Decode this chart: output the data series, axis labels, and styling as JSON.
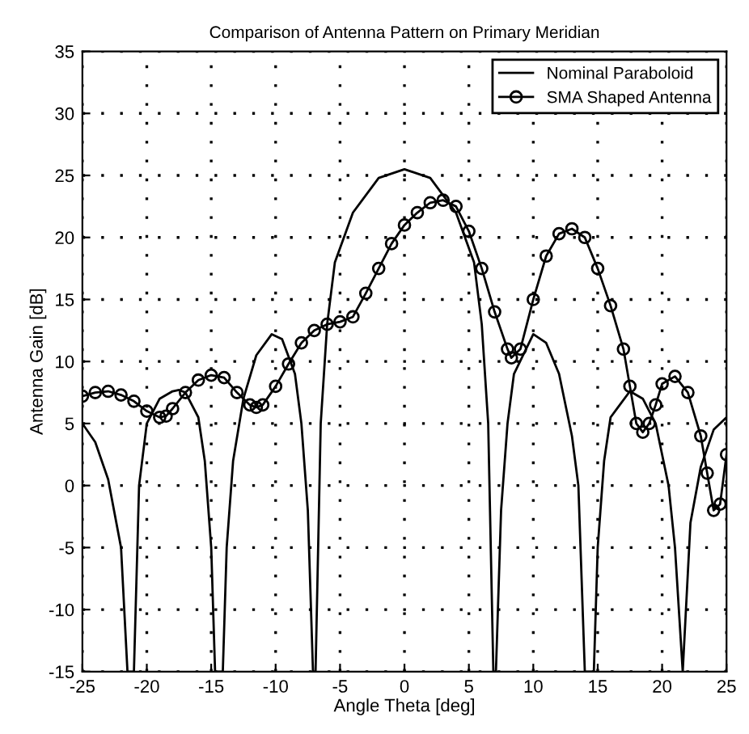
{
  "chart_data": {
    "type": "line",
    "title": "Comparison of Antenna Pattern on Primary Meridian",
    "xlabel": "Angle Theta [deg]",
    "ylabel": "Antenna Gain [dB]",
    "xlim": [
      -25,
      25
    ],
    "ylim": [
      -15,
      35
    ],
    "xticks": [
      -25,
      -20,
      -15,
      -10,
      -5,
      0,
      5,
      10,
      15,
      20,
      25
    ],
    "yticks": [
      -15,
      -10,
      -5,
      0,
      5,
      10,
      15,
      20,
      25,
      30,
      35
    ],
    "grid": true,
    "legend": "top right",
    "series": [
      {
        "name": "Nominal Paraboloid",
        "color": "#000000",
        "marker": "none",
        "x": [
          -25,
          -24,
          -23,
          -22,
          -21.5,
          -21.0,
          -20.6,
          -20,
          -19,
          -18,
          -17.5,
          -17,
          -16,
          -15.5,
          -15,
          -14.7,
          -14.1,
          -13.8,
          -13.3,
          -12.5,
          -11.5,
          -10.3,
          -9.5,
          -8.5,
          -8,
          -7.5,
          -7.1,
          -6.9,
          -6.5,
          -6,
          -5.4,
          -4,
          -2,
          0,
          2,
          4,
          5.4,
          6,
          6.5,
          6.9,
          7.1,
          7.5,
          8,
          8.5,
          10,
          11,
          12,
          13,
          13.5,
          14,
          14.7,
          15,
          15.5,
          16,
          17.5,
          18.5,
          19.5,
          20.5,
          21,
          21.6,
          22.2,
          23,
          24,
          25
        ],
        "values": [
          5,
          3.5,
          0.5,
          -5,
          -15,
          -15,
          0,
          5,
          7,
          7.6,
          7.7,
          7.5,
          5.5,
          2,
          -5,
          -15,
          -15,
          -5,
          2,
          7,
          10.5,
          12.2,
          11.8,
          9,
          5,
          -2,
          -15,
          -15,
          5,
          13,
          18,
          22,
          24.8,
          25.5,
          24.8,
          22,
          18,
          13,
          5,
          -15,
          -15,
          -2,
          5,
          9,
          12.2,
          11.5,
          9,
          4,
          0,
          -15,
          -15,
          -5,
          2,
          5.5,
          7.6,
          7,
          5,
          0,
          -5,
          -15,
          -3,
          1.5,
          4.5,
          5.5
        ]
      },
      {
        "name": "SMA Shaped Antenna",
        "color": "#000000",
        "marker": "circle",
        "x": [
          -25,
          -24,
          -23,
          -22,
          -21,
          -20,
          -19,
          -18.5,
          -18,
          -17,
          -16,
          -15,
          -14,
          -13,
          -12,
          -11.5,
          -11,
          -10,
          -9,
          -8,
          -7,
          -6,
          -5,
          -4,
          -3,
          -2,
          -1,
          0,
          1,
          2,
          3,
          4,
          5,
          6,
          7,
          8,
          8.3,
          9,
          10,
          11,
          12,
          13,
          14,
          15,
          16,
          17,
          17.5,
          18,
          18.5,
          19,
          19.5,
          20,
          21,
          22,
          23,
          23.5,
          24,
          24.5,
          25
        ],
        "values": [
          7.2,
          7.5,
          7.6,
          7.3,
          6.8,
          6,
          5.5,
          5.6,
          6.2,
          7.5,
          8.5,
          8.9,
          8.7,
          7.5,
          6.5,
          6.3,
          6.5,
          8,
          9.8,
          11.5,
          12.5,
          13,
          13.2,
          13.6,
          15.5,
          17.5,
          19.5,
          21,
          22,
          22.8,
          23,
          22.5,
          20.5,
          17.5,
          14,
          11,
          10.3,
          11,
          15,
          18.5,
          20.3,
          20.7,
          20,
          17.5,
          14.5,
          11,
          8,
          5,
          4.3,
          5,
          6.5,
          8.2,
          8.8,
          7.5,
          4,
          1,
          -2,
          -1.5,
          2.5
        ]
      }
    ]
  }
}
